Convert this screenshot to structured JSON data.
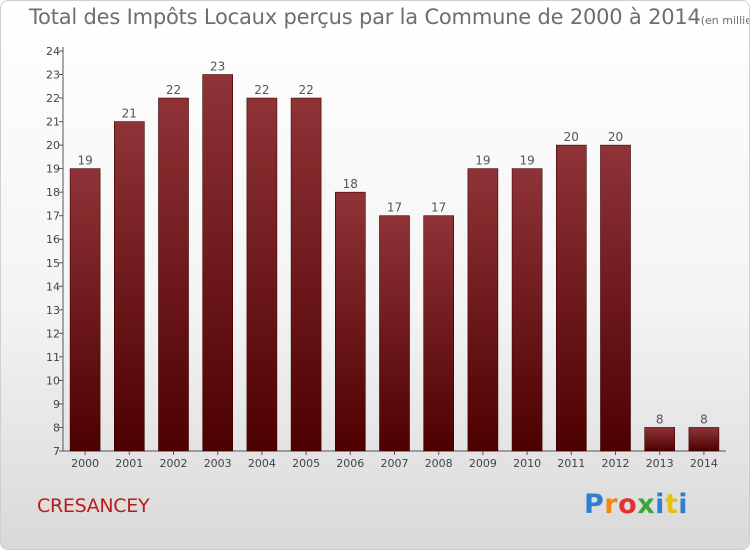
{
  "header": {
    "title": "Total des Impôts Locaux perçus par la Commune de 2000 à 2014",
    "unit": "(en milliers d'€)"
  },
  "footer": {
    "commune": "CRESANCEY",
    "logo": "Proxiti"
  },
  "colors": {
    "bar_top": "#8f3337",
    "bar_bottom": "#4d0000",
    "title": "#6e6e6e",
    "commune": "#b81c1c"
  },
  "chart_data": {
    "type": "bar",
    "title": "Total des Impôts Locaux perçus par la Commune de 2000 à 2014",
    "xlabel": "",
    "ylabel": "",
    "categories": [
      "2000",
      "2001",
      "2002",
      "2003",
      "2004",
      "2005",
      "2006",
      "2007",
      "2008",
      "2009",
      "2010",
      "2011",
      "2012",
      "2013",
      "2014"
    ],
    "values": [
      19,
      21,
      22,
      23,
      22,
      22,
      18,
      17,
      17,
      19,
      19,
      20,
      20,
      8,
      8
    ],
    "ylim": [
      7,
      24
    ],
    "yticks": [
      7,
      8,
      9,
      10,
      11,
      12,
      13,
      14,
      15,
      16,
      17,
      18,
      19,
      20,
      21,
      22,
      23,
      24
    ],
    "grid": false,
    "data_labels": true
  }
}
